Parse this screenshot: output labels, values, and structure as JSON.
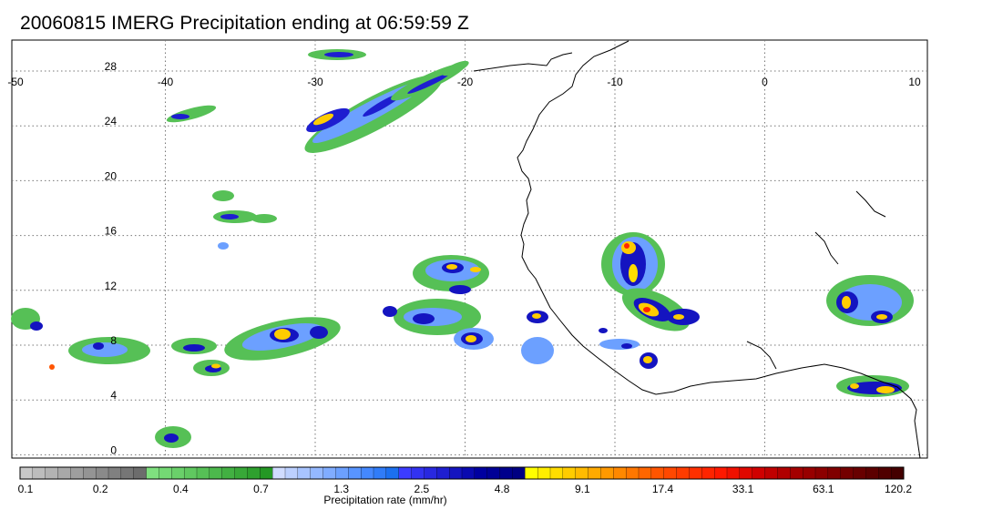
{
  "title": "20060815 IMERG Precipitation ending at 06:59:59 Z",
  "map": {
    "lon_range": [
      -50,
      10
    ],
    "lat_range": [
      -1,
      30
    ],
    "lon_ticks": [
      "-50",
      "-40",
      "-30",
      "-20",
      "-10",
      "0",
      "10"
    ],
    "lat_ticks": [
      "28",
      "24",
      "20",
      "16",
      "12",
      "8",
      "4",
      "0"
    ],
    "gridlines": "dotted"
  },
  "colorbar": {
    "title": "Precipitation rate (mm/hr)",
    "labels": [
      "0.1",
      "0.2",
      "0.4",
      "0.7",
      "1.3",
      "2.5",
      "4.8",
      "9.1",
      "17.4",
      "33.1",
      "63.1",
      "120.2"
    ],
    "groups": [
      [
        "#c8c8c8",
        "#bdbdbd",
        "#b3b3b3",
        "#a8a8a8",
        "#9e9e9e",
        "#949494",
        "#8a8a8a",
        "#808080",
        "#767676",
        "#6c6c6c"
      ],
      [
        "#7fe07f",
        "#74d874",
        "#6ad06a",
        "#60c860",
        "#56c056",
        "#4cb84c",
        "#42b042",
        "#38a838",
        "#2ea02e",
        "#249824"
      ],
      [
        "#d0dcff",
        "#bcd0ff",
        "#a8c4ff",
        "#94b8ff",
        "#80acff",
        "#6ca0ff",
        "#5894ff",
        "#4488ff",
        "#307cf8",
        "#1c70f0"
      ],
      [
        "#3c3cff",
        "#3232f0",
        "#2828e0",
        "#1e1ed0",
        "#1414c0",
        "#0a0ab0",
        "#0000a0",
        "#000096",
        "#00008c",
        "#000082"
      ],
      [
        "#ffff00",
        "#ffee00",
        "#ffdd00",
        "#ffcc00",
        "#ffbb00",
        "#ffaa00",
        "#ff9900",
        "#ff8800",
        "#ff7700",
        "#ff6600"
      ],
      [
        "#ff5500",
        "#ff4800",
        "#ff3c00",
        "#ff3000",
        "#ff2400",
        "#ff1800",
        "#f01000",
        "#e00800",
        "#d00000",
        "#c00000"
      ],
      [
        "#b00000",
        "#a40000",
        "#980000",
        "#8c0000",
        "#800000",
        "#740000",
        "#680000",
        "#5c0000",
        "#500000",
        "#440000"
      ]
    ]
  },
  "legend_colors": {
    "gray": "#a0a0a0",
    "green": "#5cc45c",
    "light_blue": "#6ca0ff",
    "blue": "#1414c0",
    "yellow": "#ffdd00",
    "orange": "#ff8800",
    "red": "#ff2400",
    "dark_red": "#800000",
    "coastline": "#000000"
  }
}
